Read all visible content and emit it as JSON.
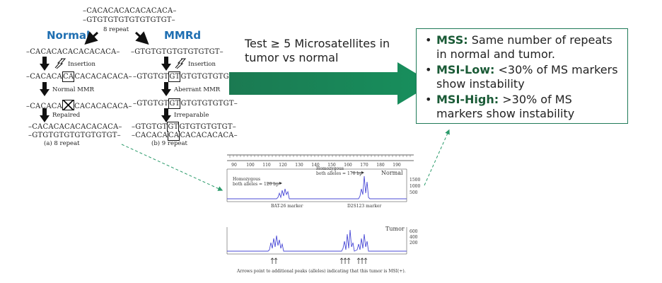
{
  "top": {
    "seq1": "–CACACACACACACACA–",
    "seq2": "–GTGTGTGTGTGTGTGT–",
    "repeat_label": "8 repeat"
  },
  "normal": {
    "title": "Normal",
    "seq": "–CACACACACACACACA–",
    "insertion_label": "Insertion",
    "mut_left": "–CACACA",
    "mut_box": "CA",
    "mut_right": "CACACACACA–",
    "mmr_label": "Normal MMR",
    "x_left": "–CACACA",
    "x_right": "CACACACACA–",
    "repaired_label": "Repaired",
    "final1": "–CACACACACACACACA–",
    "final2": "–GTGTGTGTGTGTGTGT–",
    "final_caption": "(a) 8 repeat"
  },
  "mmrd": {
    "title": "MMRd",
    "seq": "–GTGTGTGTGTGTGTGT–",
    "insertion_label": "Insertion",
    "mut_left": "–GTGTGT",
    "mut_box": "GT",
    "mut_right": "GTGTGTGTGT–",
    "mmr_label": "Aberrant MMR",
    "mut2_left": "–GTGTGT",
    "mut2_box": "GT",
    "mut2_right": "GTGTGTGTGT–",
    "irreparable_label": "Irreparable",
    "final1_left": "–GTGTGT",
    "final1_box": "GT",
    "final1_right": "GTGTGTGTGT–",
    "final2_left": "–CACACA",
    "final2_box": "CA",
    "final2_right": "CACACACACA–",
    "final_caption": "(b) 9 repeat"
  },
  "arrow_text": "Test ≥ 5 Microsatellites in tumor vs normal",
  "criteria": [
    {
      "term": "MSS:",
      "desc": " Same number of repeats in normal and tumor."
    },
    {
      "term": "MSI-Low:",
      "desc": " <30% of MS markers show instability"
    },
    {
      "term": "MSI-High:",
      "desc": " >30% of MS markers show instability"
    }
  ],
  "electropherogram": {
    "ticks": [
      "90",
      "100",
      "110",
      "120",
      "130",
      "140",
      "150",
      "160",
      "170",
      "180",
      "190"
    ],
    "normal_label": "Normal",
    "tumor_label": "Tumor",
    "homo1_line1": "Homozygous",
    "homo1_line2": "both alleles = 120 bp",
    "homo2_line1": "Homozygous",
    "homo2_line2": "both alleles = 170 bp",
    "marker1": "BAT-26 marker",
    "marker2": "D2S123 marker",
    "normal_scale": [
      "1500",
      "1000",
      "500"
    ],
    "tumor_scale": [
      "600",
      "400",
      "200"
    ],
    "footnote": "Arrows point to additional peaks (alleles) indicating that this tumor is MSI(+)."
  },
  "colors": {
    "accent_blue": "#1f6fb2",
    "arrow_green": "#1a7a52",
    "trace_blue": "#4b4bd6"
  }
}
